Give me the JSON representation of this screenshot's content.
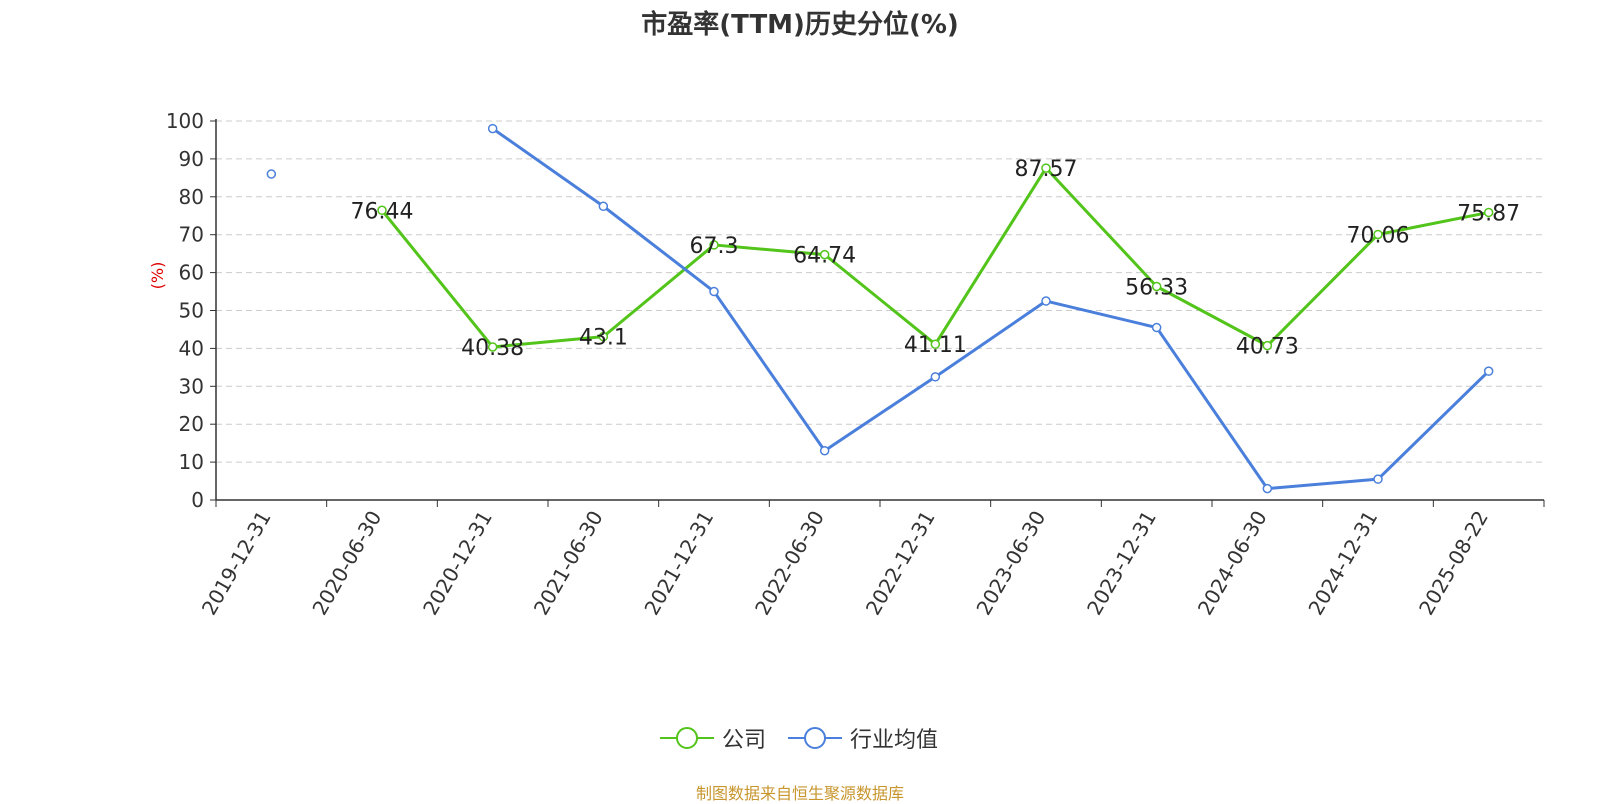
{
  "chart_data": {
    "type": "line",
    "title": "市盈率(TTM)历史分位(%)",
    "ylabel": "(%)",
    "ylim": [
      0,
      100
    ],
    "yticks": [
      0,
      10,
      20,
      30,
      40,
      50,
      60,
      70,
      80,
      90,
      100
    ],
    "categories": [
      "2019-12-31",
      "2020-06-30",
      "2020-12-31",
      "2021-06-30",
      "2021-12-31",
      "2022-06-30",
      "2022-12-31",
      "2023-06-30",
      "2023-12-31",
      "2024-06-30",
      "2024-12-31",
      "2025-08-22"
    ],
    "grid": true,
    "legend_position": "bottom",
    "series": [
      {
        "name": "公司",
        "color": "#52c41a",
        "show_labels": true,
        "values": [
          null,
          76.44,
          40.38,
          43.1,
          67.3,
          64.74,
          41.11,
          87.57,
          56.33,
          40.73,
          70.06,
          75.87
        ]
      },
      {
        "name": "行业均值",
        "color": "#4a7fdb",
        "show_labels": false,
        "values": [
          86,
          null,
          98,
          77.5,
          55,
          13,
          32.5,
          52.5,
          45.5,
          3,
          5.5,
          34
        ]
      }
    ]
  },
  "source": "制图数据来自恒生聚源数据库"
}
